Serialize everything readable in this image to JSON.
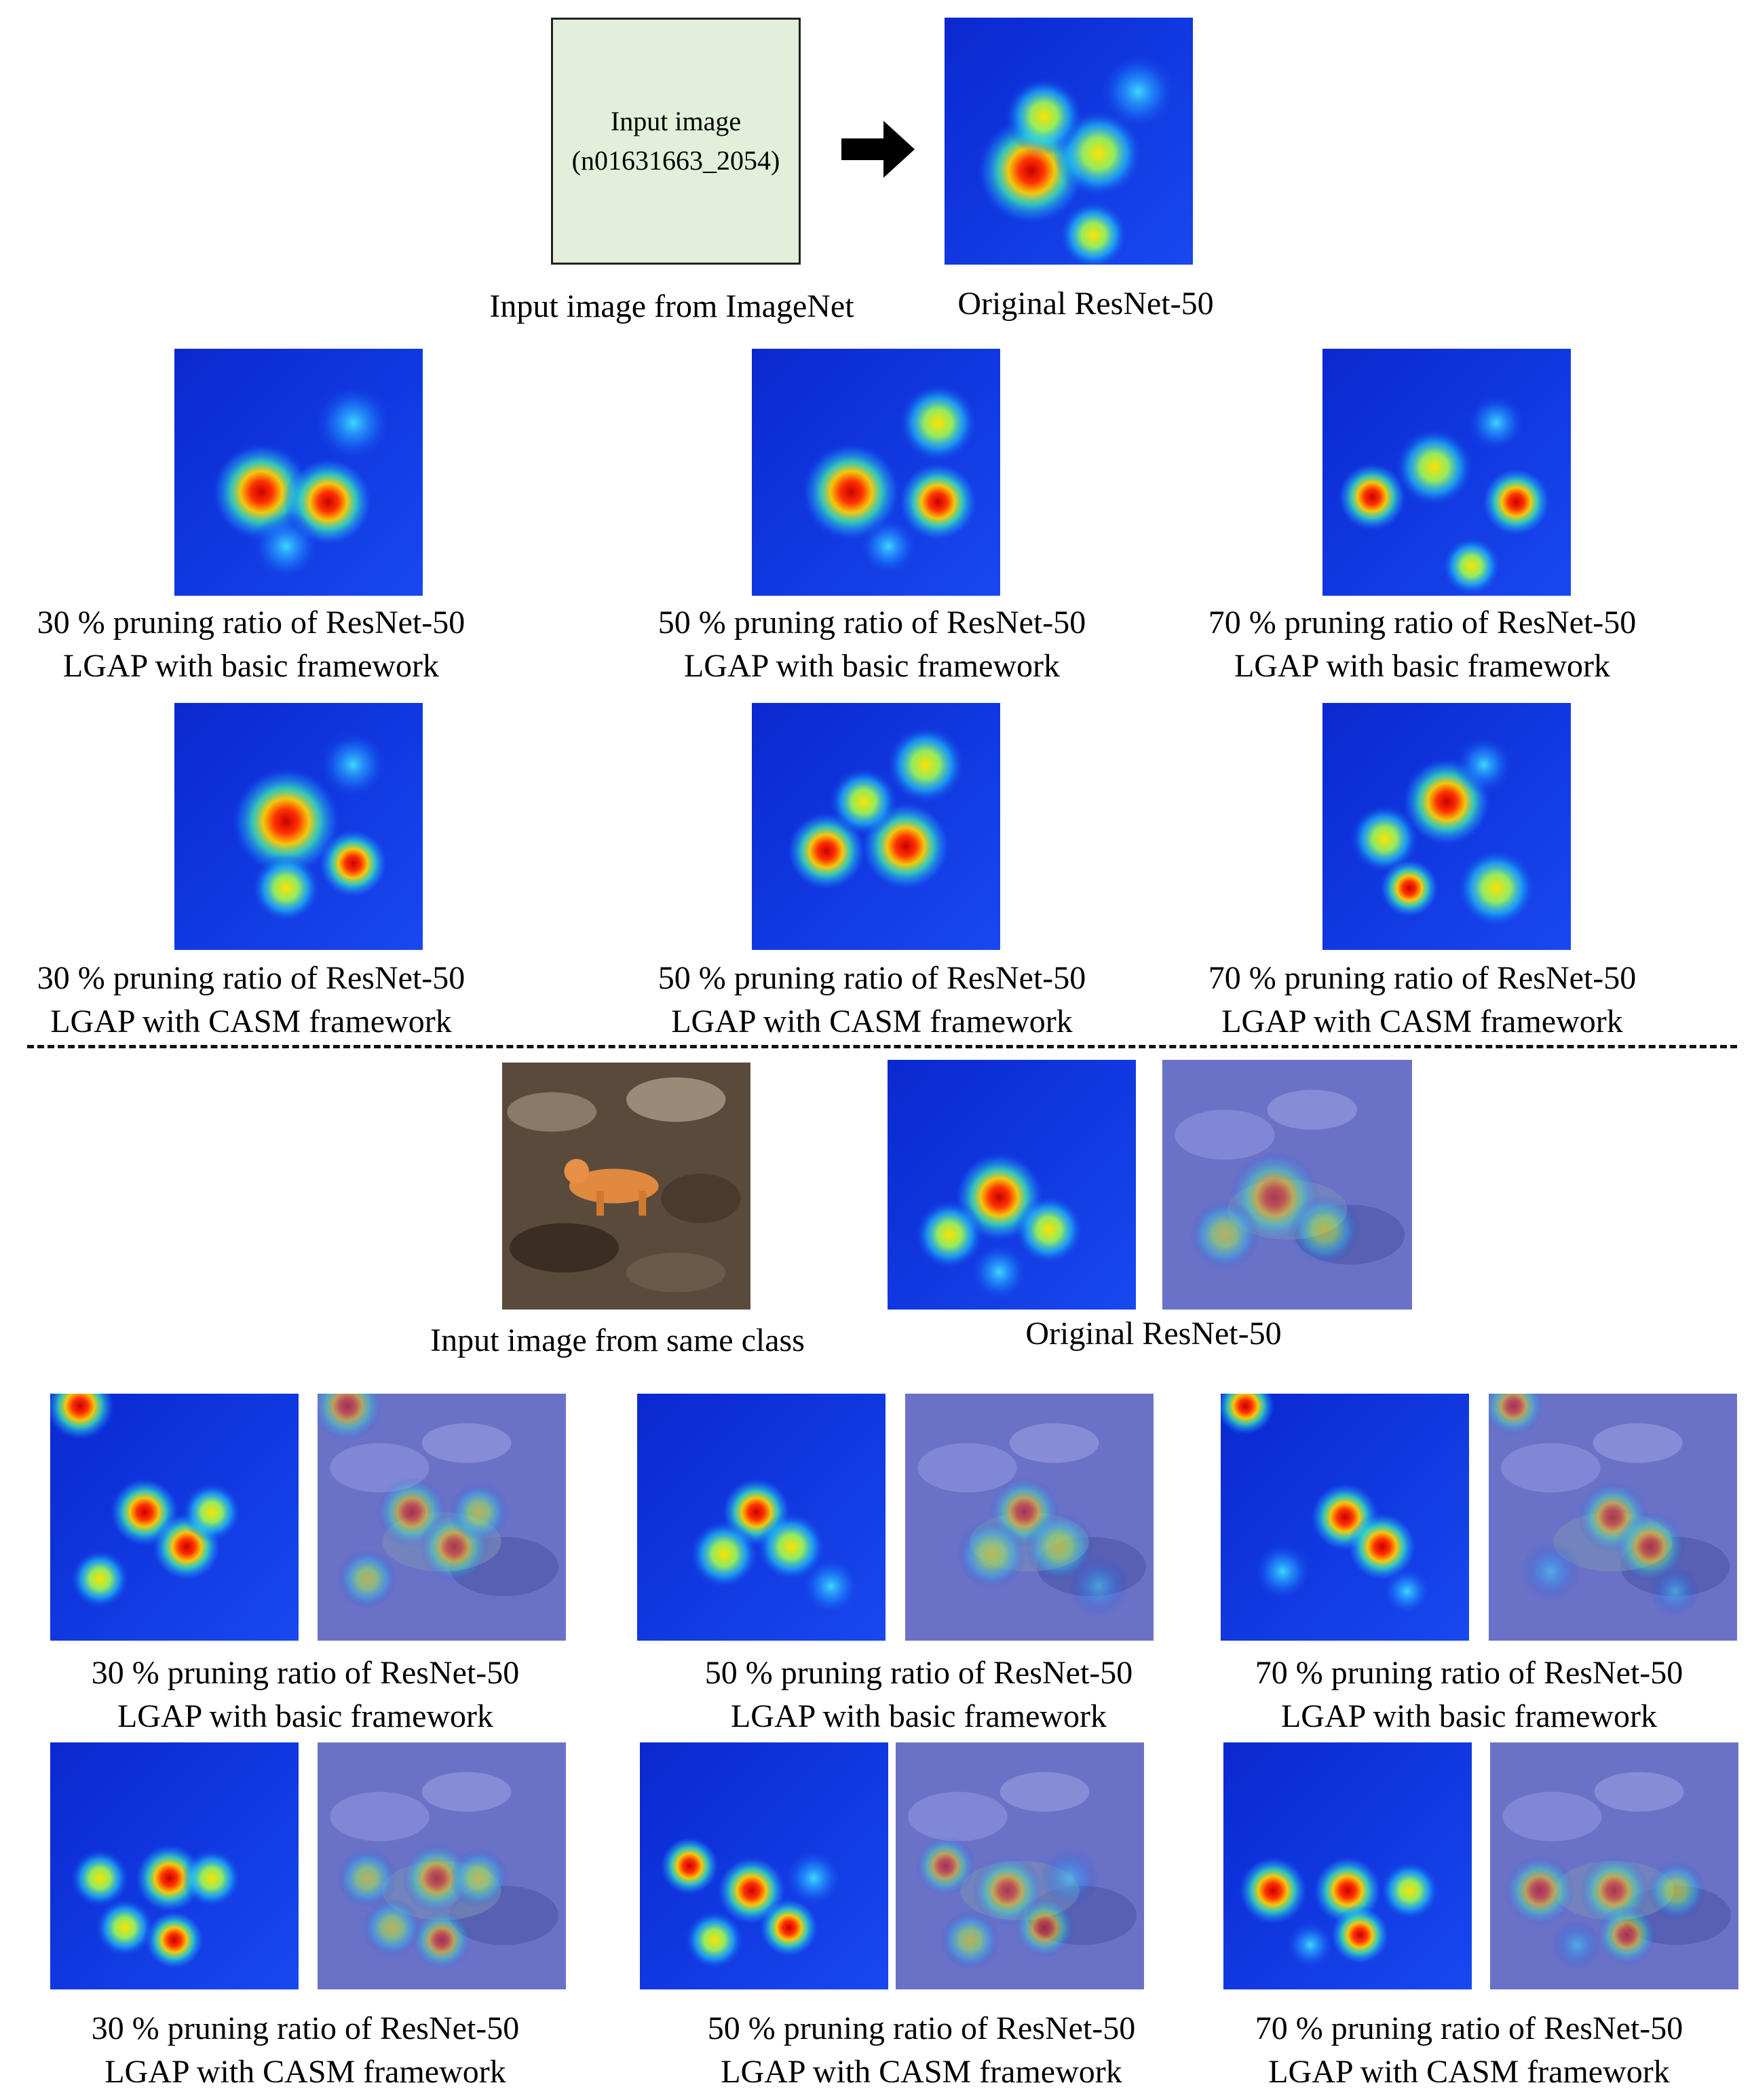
{
  "top": {
    "placeholder_line1": "Input image",
    "placeholder_line2": "(n01631663_2054)",
    "input_caption": "Input image from ImageNet",
    "original_caption": "Original ResNet-50",
    "rows": [
      {
        "items": [
          {
            "line1": "30 % pruning ratio of ResNet-50",
            "line2": "LGAP with basic framework"
          },
          {
            "line1": "50 % pruning ratio of ResNet-50",
            "line2": "LGAP with basic framework"
          },
          {
            "line1": "70 % pruning ratio of ResNet-50",
            "line2": "LGAP with basic framework"
          }
        ]
      },
      {
        "items": [
          {
            "line1": "30 % pruning ratio of ResNet-50",
            "line2": "LGAP with CASM framework"
          },
          {
            "line1": "50 % pruning ratio of ResNet-50",
            "line2": "LGAP with CASM framework"
          },
          {
            "line1": "70 % pruning ratio of ResNet-50",
            "line2": "LGAP with CASM framework"
          }
        ]
      }
    ]
  },
  "bottom": {
    "input_caption": "Input image from same class",
    "original_caption": "Original ResNet-50",
    "rows": [
      {
        "items": [
          {
            "line1": "30 % pruning ratio of ResNet-50",
            "line2": "LGAP with basic framework"
          },
          {
            "line1": "50 % pruning ratio of ResNet-50",
            "line2": "LGAP with basic framework"
          },
          {
            "line1": "70 % pruning ratio of ResNet-50",
            "line2": "LGAP with basic framework"
          }
        ]
      },
      {
        "items": [
          {
            "line1": "30 % pruning ratio of ResNet-50",
            "line2": "LGAP with CASM framework"
          },
          {
            "line1": "50 % pruning ratio of ResNet-50",
            "line2": "LGAP with CASM framework"
          },
          {
            "line1": "70 % pruning ratio of ResNet-50",
            "line2": "LGAP with CASM framework"
          }
        ]
      }
    ]
  },
  "colors": {
    "heatmap_bg": "#1030e0",
    "placeholder_fill": "#e2efda",
    "arrow": "#000000"
  }
}
